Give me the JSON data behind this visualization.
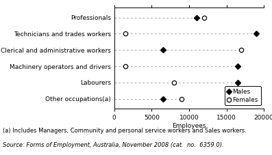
{
  "categories": [
    "Professionals",
    "Technicians and trades workers",
    "Clerical and administrative workers",
    "Machinery operators and drivers",
    "Labourers",
    "Other occupations(a)"
  ],
  "males": [
    11000,
    19000,
    6500,
    16500,
    16500,
    6500
  ],
  "females": [
    12000,
    1500,
    17000,
    1500,
    8000,
    9000
  ],
  "xlabel": "Employees",
  "xlim": [
    0,
    20000
  ],
  "xticks": [
    0,
    5000,
    10000,
    15000,
    20000
  ],
  "xtick_labels": [
    "0",
    "5000",
    "10000",
    "15000",
    "20000"
  ],
  "male_color": "#000000",
  "female_color": "#000000",
  "line_color": "#aaaaaa",
  "footnote1": "(a) Includes Managers, Community and personal service workers and Sales workers.",
  "footnote2": "Source: Forms of Employment, Australia, November 2008 (cat.  no.  6359.0).",
  "legend_males": "Males",
  "legend_females": "Females",
  "label_fontsize": 6.5,
  "tick_fontsize": 6.5,
  "footnote_fontsize": 6.0
}
